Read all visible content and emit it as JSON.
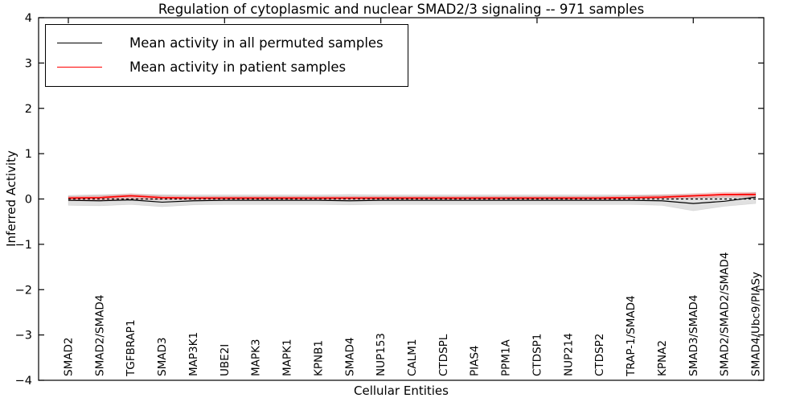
{
  "figure": {
    "background_color": "#ffffff",
    "accent_colors": {
      "patient_line": "#ff0000",
      "permuted_line": "#000000"
    }
  },
  "legend": {
    "items": [
      {
        "label": "Mean activity in all permuted samples",
        "color": "#000000"
      },
      {
        "label": "Mean activity in patient samples",
        "color": "#ff0000"
      }
    ],
    "position": "upper left"
  },
  "chart_data": {
    "type": "line",
    "title": "Regulation of cytoplasmic and nuclear SMAD2/3 signaling -- 971 samples",
    "xlabel": "Cellular Entities",
    "ylabel": "Inferred Activity",
    "ylim": [
      -4,
      4
    ],
    "y_ticks": [
      4,
      3,
      2,
      1,
      0,
      -1,
      -2,
      -3,
      -4
    ],
    "y_tick_labels": [
      "4",
      "3",
      "2",
      "1",
      "0",
      "−1",
      "−2",
      "−3",
      "−4"
    ],
    "x_top_tick_positions": [
      0,
      5,
      10,
      15,
      20
    ],
    "grid": false,
    "legend_position": "upper left",
    "zero_line": {
      "style": "dashed",
      "color": "#000000",
      "y": 0
    },
    "categories": [
      "SMAD2",
      "SMAD2/SMAD4",
      "TGFBRAP1",
      "SMAD3",
      "MAP3K1",
      "UBE2I",
      "MAPK3",
      "MAPK1",
      "KPNB1",
      "SMAD4",
      "NUP153",
      "CALM1",
      "CTDSPL",
      "PIAS4",
      "PPM1A",
      "CTDSP1",
      "NUP214",
      "CTDSP2",
      "TRAP-1/SMAD4",
      "KPNA2",
      "SMAD3/SMAD4",
      "SMAD2/SMAD2/SMAD4",
      "SMAD4/Ubc9/PIASy"
    ],
    "series": [
      {
        "name": "Mean activity in all permuted samples",
        "color": "#000000",
        "band_color": "rgba(0,0,0,0.12)",
        "values": [
          -0.03,
          -0.04,
          -0.02,
          -0.07,
          -0.04,
          -0.03,
          -0.03,
          -0.03,
          -0.03,
          -0.04,
          -0.03,
          -0.03,
          -0.03,
          -0.03,
          -0.03,
          -0.03,
          -0.03,
          -0.03,
          -0.03,
          -0.04,
          -0.1,
          -0.05,
          0.04
        ],
        "band_upper": [
          0.08,
          0.1,
          0.1,
          0.1,
          0.09,
          0.09,
          0.09,
          0.09,
          0.09,
          0.1,
          0.09,
          0.09,
          0.09,
          0.09,
          0.09,
          0.09,
          0.09,
          0.09,
          0.09,
          0.09,
          0.1,
          0.1,
          0.14
        ],
        "band_lower": [
          -0.14,
          -0.15,
          -0.12,
          -0.17,
          -0.13,
          -0.12,
          -0.12,
          -0.12,
          -0.12,
          -0.13,
          -0.12,
          -0.12,
          -0.12,
          -0.12,
          -0.12,
          -0.12,
          -0.12,
          -0.12,
          -0.12,
          -0.14,
          -0.26,
          -0.16,
          -0.1
        ]
      },
      {
        "name": "Mean activity in patient samples",
        "color": "#ff0000",
        "band_color": "rgba(255,0,0,0.20)",
        "values": [
          0.02,
          0.03,
          0.07,
          0.03,
          0.02,
          0.02,
          0.02,
          0.02,
          0.02,
          0.02,
          0.02,
          0.02,
          0.02,
          0.02,
          0.02,
          0.02,
          0.02,
          0.02,
          0.03,
          0.04,
          0.07,
          0.1,
          0.1
        ],
        "band_upper": [
          0.06,
          0.07,
          0.12,
          0.07,
          0.06,
          0.06,
          0.06,
          0.06,
          0.06,
          0.06,
          0.06,
          0.06,
          0.06,
          0.06,
          0.06,
          0.06,
          0.06,
          0.06,
          0.07,
          0.09,
          0.12,
          0.15,
          0.15
        ],
        "band_lower": [
          -0.03,
          -0.03,
          -0.01,
          -0.02,
          -0.02,
          -0.02,
          -0.02,
          -0.02,
          -0.02,
          -0.02,
          -0.02,
          -0.02,
          -0.02,
          -0.02,
          -0.02,
          -0.02,
          -0.02,
          -0.02,
          -0.01,
          0.0,
          0.02,
          0.04,
          0.04
        ]
      }
    ]
  }
}
